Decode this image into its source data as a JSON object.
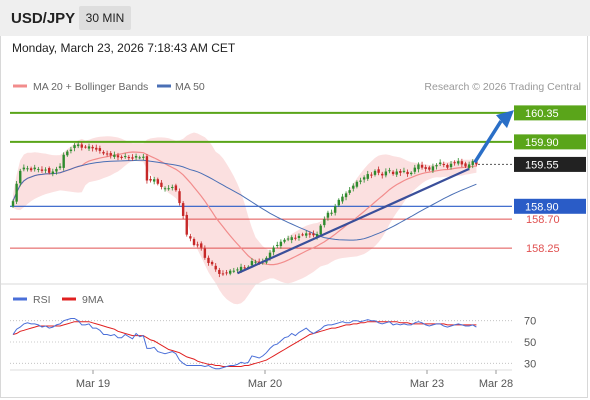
{
  "header": {
    "symbol": "USD/JPY",
    "timeframe": "30 MIN"
  },
  "datetime": "Monday, March 23, 2026 7:18:43 AM CET",
  "legend": {
    "ma20_label": "MA 20 + Bollinger Bands",
    "ma50_label": "MA 50",
    "copyright": "Research © 2026 Trading Central",
    "rsi_label": "RSI",
    "ma9_label": "9MA"
  },
  "colors": {
    "bullish": "#2e8b2e",
    "bearish": "#c62828",
    "ma20": "#f28c8c",
    "bollinger_fill": "#fbe0e0",
    "ma50": "#4a6fb5",
    "trendline": "#3a4f9a",
    "resistance": "#5aa51a",
    "current_box": "#222222",
    "pivot": "#2a5cc7",
    "support": "#e05050",
    "forecast_arrow": "#2a6fc7",
    "rsi": "#4a6fd8",
    "rsi_ma9": "#e02020"
  },
  "chart_data": [
    {
      "type": "candlestick",
      "title": "USD/JPY 30 MIN",
      "xlabel": "",
      "ylabel": "",
      "ylim": [
        157.88,
        160.55
      ],
      "grid": false,
      "legend_position": "top",
      "x_ticks": [
        "Mar 19",
        "Mar 20",
        "Mar 23",
        "Mar 28"
      ],
      "current_price": 159.55,
      "levels": [
        {
          "value": 160.35,
          "role": "resistance"
        },
        {
          "value": 159.9,
          "role": "resistance"
        },
        {
          "value": 158.9,
          "role": "pivot"
        },
        {
          "value": 158.7,
          "role": "support"
        },
        {
          "value": 158.25,
          "role": "support"
        }
      ],
      "series": [
        {
          "name": "USD/JPY",
          "type": "candlestick",
          "close": [
            158.98,
            159.25,
            159.45,
            159.5,
            159.49,
            159.46,
            159.5,
            159.48,
            159.45,
            159.47,
            159.42,
            159.44,
            159.48,
            159.52,
            159.7,
            159.75,
            159.78,
            159.85,
            159.86,
            159.81,
            159.82,
            159.83,
            159.8,
            159.78,
            159.76,
            159.72,
            159.71,
            159.69,
            159.7,
            159.66,
            159.65,
            159.68,
            159.66,
            159.64,
            159.68,
            159.66,
            159.67,
            159.3,
            159.3,
            159.32,
            159.25,
            159.2,
            159.18,
            159.18,
            159.2,
            159.15,
            158.95,
            158.75,
            158.46,
            158.4,
            158.3,
            158.3,
            158.26,
            158.1,
            158.02,
            158.0,
            157.92,
            157.85,
            157.85,
            157.87,
            157.9,
            157.9,
            157.92,
            157.96,
            157.94,
            157.96,
            158.05,
            158.04,
            158.02,
            158.05,
            158.1,
            158.18,
            158.26,
            158.3,
            158.35,
            158.38,
            158.4,
            158.42,
            158.4,
            158.44,
            158.46,
            158.48,
            158.46,
            158.45,
            158.47,
            158.6,
            158.7,
            158.8,
            158.8,
            158.9,
            159.0,
            159.05,
            159.1,
            159.15,
            159.22,
            159.28,
            159.3,
            159.35,
            159.4,
            159.38,
            159.45,
            159.42,
            159.38,
            159.44,
            159.46,
            159.4,
            159.44,
            159.42,
            159.45,
            159.4,
            159.42,
            159.5,
            159.55,
            159.5,
            159.48,
            159.47,
            159.52,
            159.54,
            159.58,
            159.55,
            159.5,
            159.56,
            159.58,
            159.6,
            159.55,
            159.52,
            159.55,
            159.6,
            159.55
          ]
        },
        {
          "name": "MA 20 + Bollinger Bands",
          "type": "line"
        },
        {
          "name": "MA 50",
          "type": "line"
        }
      ]
    },
    {
      "type": "line",
      "title": "",
      "ylim": [
        20,
        80
      ],
      "y_ticks": [
        70,
        50,
        30
      ],
      "grid": false,
      "series": [
        {
          "name": "RSI",
          "values": [
            57,
            62,
            64,
            67,
            68,
            67,
            67,
            66,
            64,
            65,
            63,
            64,
            66,
            67,
            70,
            71,
            72,
            72,
            70,
            66,
            66,
            67,
            63,
            63,
            61,
            57,
            57,
            56,
            57,
            54,
            54,
            57,
            55,
            53,
            58,
            55,
            56,
            44,
            44,
            45,
            41,
            40,
            39,
            40,
            41,
            39,
            33,
            30,
            28,
            28,
            28,
            28,
            28,
            27,
            28,
            26,
            25,
            25,
            26,
            27,
            28,
            28,
            29,
            31,
            30,
            31,
            37,
            36,
            35,
            37,
            40,
            44,
            47,
            48,
            51,
            54,
            55,
            58,
            56,
            59,
            61,
            63,
            60,
            58,
            60,
            62,
            65,
            66,
            66,
            67,
            68,
            69,
            68,
            68,
            70,
            70,
            69,
            70,
            71,
            70,
            70,
            68,
            67,
            68,
            69,
            66,
            67,
            66,
            67,
            66,
            66,
            68,
            69,
            68,
            66,
            65,
            66,
            67,
            67,
            65,
            64,
            65,
            66,
            67,
            66,
            65,
            65,
            66,
            64
          ]
        },
        {
          "name": "9MA",
          "values": [
            57,
            58,
            60,
            61,
            62,
            63,
            64,
            65,
            65,
            65,
            65,
            65,
            65,
            65,
            66,
            67,
            68,
            69,
            69,
            69,
            69,
            69,
            68,
            67,
            66,
            65,
            64,
            63,
            62,
            60,
            59,
            58,
            57,
            56,
            56,
            56,
            56,
            54,
            52,
            51,
            49,
            47,
            45,
            43,
            42,
            41,
            40,
            38,
            36,
            35,
            34,
            32,
            31,
            30,
            29,
            29,
            28,
            28,
            27,
            27,
            27,
            27,
            27,
            27,
            28,
            28,
            29,
            30,
            31,
            32,
            33,
            35,
            37,
            39,
            41,
            43,
            45,
            47,
            49,
            51,
            53,
            55,
            57,
            58,
            59,
            60,
            61,
            62,
            63,
            63,
            64,
            65,
            66,
            66,
            67,
            67,
            68,
            68,
            69,
            69,
            69,
            69,
            69,
            69,
            69,
            69,
            69,
            68,
            68,
            68,
            67,
            67,
            67,
            67,
            67,
            67,
            67,
            67,
            67,
            67,
            66,
            66,
            66,
            66,
            66,
            66,
            66,
            66,
            66
          ]
        }
      ]
    }
  ]
}
